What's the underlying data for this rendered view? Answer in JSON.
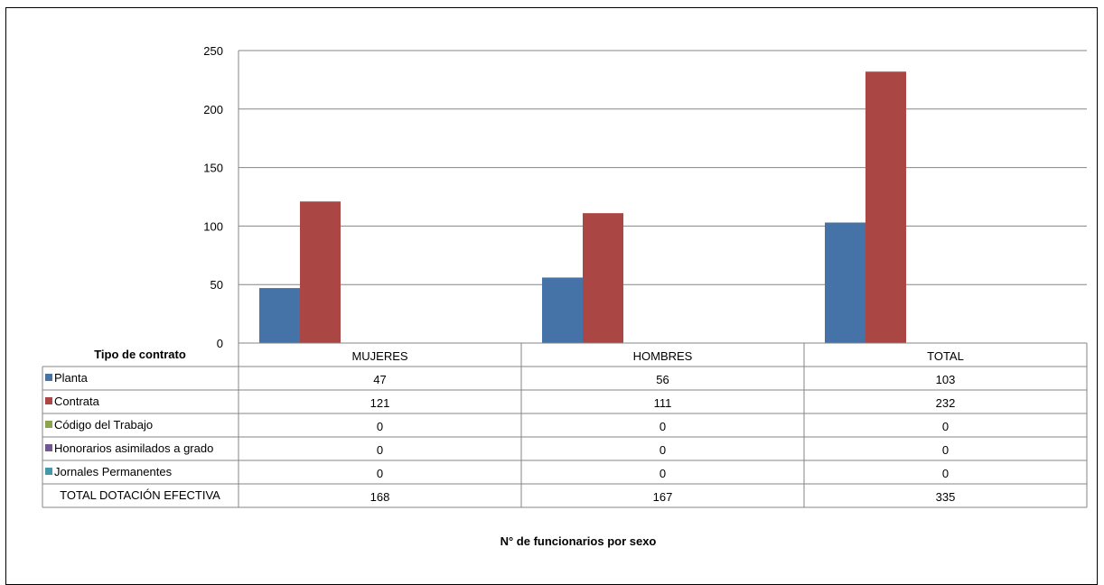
{
  "chart_data": {
    "type": "bar",
    "categories": [
      "MUJERES",
      "HOMBRES",
      "TOTAL"
    ],
    "series": [
      {
        "name": "Planta",
        "color": "#4572a7",
        "values": [
          47,
          56,
          103
        ]
      },
      {
        "name": "Contrata",
        "color": "#aa4643",
        "values": [
          121,
          111,
          232
        ]
      },
      {
        "name": "Código del Trabajo",
        "color": "#89a54e",
        "values": [
          0,
          0,
          0
        ]
      },
      {
        "name": "Honorarios asimilados a grado",
        "color": "#71588f",
        "values": [
          0,
          0,
          0
        ]
      },
      {
        "name": "Jornales Permanentes",
        "color": "#4198af",
        "values": [
          0,
          0,
          0
        ]
      }
    ],
    "totals": {
      "label": "TOTAL DOTACIÓN EFECTIVA",
      "values": [
        168,
        167,
        335
      ]
    },
    "ylim": [
      0,
      250
    ],
    "yticks": [
      0,
      50,
      100,
      150,
      200,
      250
    ],
    "grid": true,
    "table_header_label": "Tipo de contrato",
    "xlabel": "N° de funcionarios por sexo",
    "legend": "data-table"
  }
}
